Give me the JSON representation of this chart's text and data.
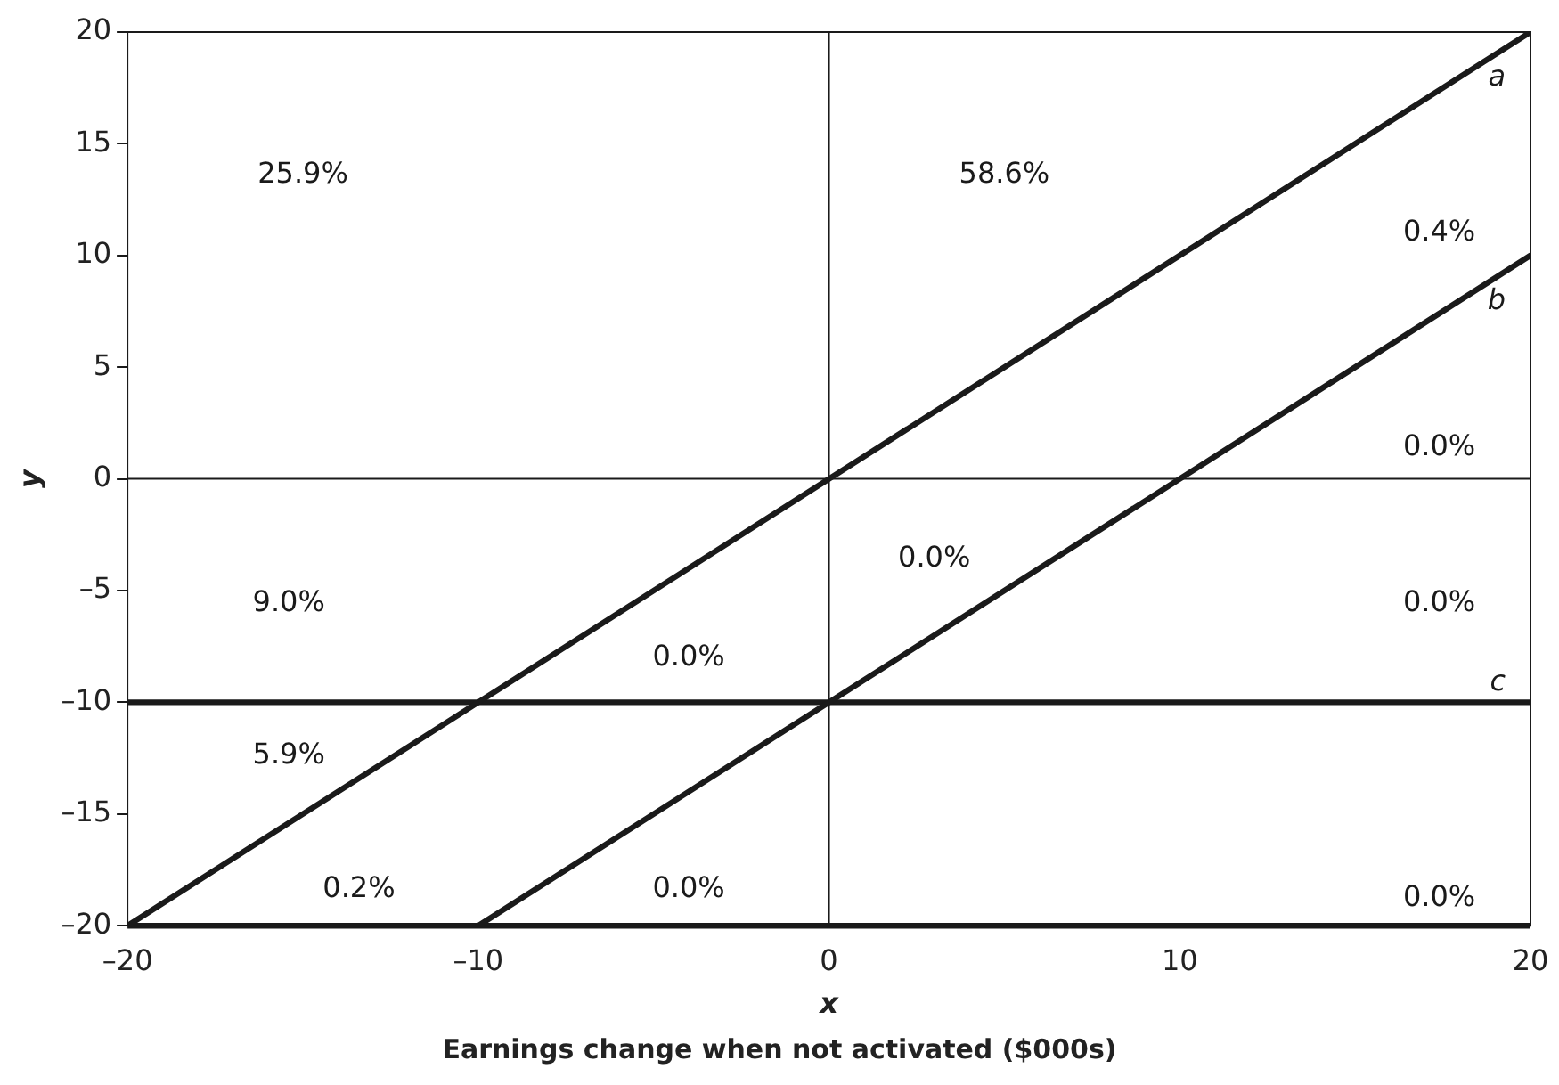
{
  "chart_data": {
    "type": "line",
    "xlabel": "x",
    "ylabel": "y",
    "series": [
      {
        "name": "a",
        "color": "#1a1a1a",
        "x": [
          -20,
          20
        ],
        "values": [
          -20,
          20
        ]
      },
      {
        "name": "b",
        "color": "#1a1a1a",
        "x": [
          -10,
          20
        ],
        "values": [
          -20,
          10
        ]
      },
      {
        "name": "c",
        "color": "#1a1a1a",
        "x": [
          -20,
          20
        ],
        "values": [
          -10,
          -10
        ]
      }
    ],
    "xlim": [
      -20,
      20
    ],
    "ylim": [
      -20,
      20
    ],
    "xticks": [
      {
        "value": -20,
        "label": "–20"
      },
      {
        "value": -10,
        "label": "–10"
      },
      0,
      10,
      20
    ],
    "yticks": [
      {
        "value": -20,
        "label": "–20"
      },
      {
        "value": -15,
        "label": "–15"
      },
      {
        "value": -10,
        "label": "–10"
      },
      {
        "value": -5,
        "label": "–5"
      },
      0,
      5,
      10,
      15,
      20
    ],
    "ref_lines": [
      {
        "axis": "x",
        "value": 0,
        "color": "#1a1a1a"
      },
      {
        "axis": "y",
        "value": 0,
        "color": "#1a1a1a"
      },
      {
        "axis": "y",
        "value": -20,
        "color": "#1a1a1a"
      }
    ],
    "grid": false,
    "legend": false,
    "marker": "none",
    "line_style": "solid",
    "annotations": [
      "25.9%",
      "58.6%",
      "0.4%",
      "0.0%",
      "0.0%",
      "9.0%",
      "0.0%",
      "0.0%",
      "5.9%",
      "0.2%",
      "0.0%",
      "0.0%",
      "Earnings change when not activated ($000s)"
    ]
  }
}
